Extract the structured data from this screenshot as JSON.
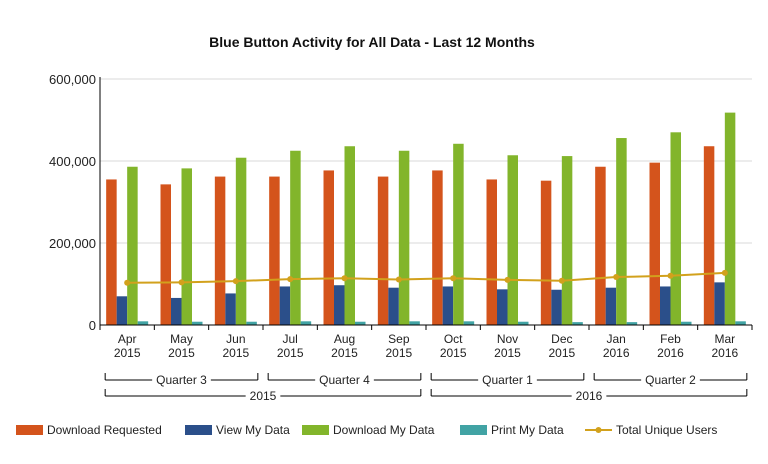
{
  "chart_data": {
    "type": "bar",
    "title": "Blue Button Activity for All Data - Last 12 Months",
    "xlabel": "",
    "ylabel": "",
    "ylim": [
      0,
      600000
    ],
    "yticks": [
      "0",
      "200,000",
      "400,000",
      "600,000"
    ],
    "grid": true,
    "legend_position": "bottom",
    "categories": [
      {
        "month": "Apr",
        "year": "2015"
      },
      {
        "month": "May",
        "year": "2015"
      },
      {
        "month": "Jun",
        "year": "2015"
      },
      {
        "month": "Jul",
        "year": "2015"
      },
      {
        "month": "Aug",
        "year": "2015"
      },
      {
        "month": "Sep",
        "year": "2015"
      },
      {
        "month": "Oct",
        "year": "2015"
      },
      {
        "month": "Nov",
        "year": "2015"
      },
      {
        "month": "Dec",
        "year": "2015"
      },
      {
        "month": "Jan",
        "year": "2016"
      },
      {
        "month": "Feb",
        "year": "2016"
      },
      {
        "month": "Mar",
        "year": "2016"
      }
    ],
    "quarters": [
      {
        "label": "Quarter 3",
        "start": 0,
        "end": 2
      },
      {
        "label": "Quarter 4",
        "start": 3,
        "end": 5
      },
      {
        "label": "Quarter 1",
        "start": 6,
        "end": 8
      },
      {
        "label": "Quarter 2",
        "start": 9,
        "end": 11
      }
    ],
    "years": [
      {
        "label": "2015",
        "start": 0,
        "end": 5
      },
      {
        "label": "2016",
        "start": 6,
        "end": 11
      }
    ],
    "series": [
      {
        "name": "Download Requested",
        "type": "bar",
        "color": "#d4541c",
        "values": [
          355000,
          343000,
          362000,
          362000,
          377000,
          362000,
          377000,
          355000,
          352000,
          386000,
          396000,
          436000
        ]
      },
      {
        "name": "View My Data",
        "type": "bar",
        "color": "#2b4f8a",
        "values": [
          70000,
          66000,
          77000,
          94000,
          97000,
          91000,
          94000,
          87000,
          86000,
          91000,
          94000,
          104000
        ]
      },
      {
        "name": "Download My Data",
        "type": "bar",
        "color": "#82b52b",
        "values": [
          386000,
          382000,
          408000,
          425000,
          436000,
          425000,
          442000,
          414000,
          412000,
          456000,
          470000,
          518000
        ]
      },
      {
        "name": "Print My Data",
        "type": "bar",
        "color": "#41a3a4",
        "values": [
          9000,
          8000,
          8000,
          9000,
          8000,
          9000,
          9000,
          8000,
          7000,
          7000,
          8000,
          9000
        ]
      },
      {
        "name": "Total Unique Users",
        "type": "line",
        "color": "#d2a11c",
        "values": [
          103000,
          104000,
          107000,
          112000,
          114000,
          111000,
          114000,
          110000,
          108000,
          117000,
          120000,
          127000
        ]
      }
    ]
  }
}
